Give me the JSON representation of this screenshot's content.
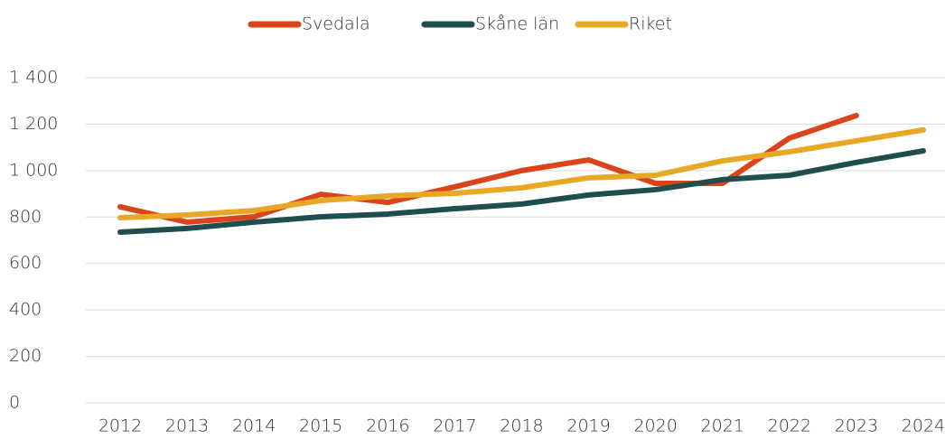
{
  "chart_data": {
    "type": "line",
    "categories": [
      "2012",
      "2013",
      "2014",
      "2015",
      "2016",
      "2017",
      "2018",
      "2019",
      "2020",
      "2021",
      "2022",
      "2023",
      "2024"
    ],
    "series": [
      {
        "name": "Svedala",
        "color": "#d9441a",
        "values": [
          844,
          778,
          801,
          898,
          863,
          930,
          1000,
          1046,
          945,
          945,
          1140,
          1237,
          null
        ]
      },
      {
        "name": "Skåne län",
        "color": "#1f4e4f",
        "values": [
          735,
          751,
          778,
          801,
          813,
          836,
          856,
          895,
          918,
          961,
          980,
          1035,
          1085
        ]
      },
      {
        "name": "Riket",
        "color": "#e8a825",
        "values": [
          797,
          809,
          828,
          871,
          891,
          902,
          926,
          969,
          980,
          1042,
          1081,
          1128,
          1175
        ]
      }
    ],
    "ylim": [
      0,
      1400
    ],
    "yticks": [
      0,
      200,
      400,
      600,
      800,
      {
        "value": 1000,
        "label": "1 000"
      },
      {
        "value": 1200,
        "label": "1 200"
      },
      {
        "value": 1400,
        "label": "1 400"
      }
    ],
    "grid": true,
    "legend": "top"
  }
}
